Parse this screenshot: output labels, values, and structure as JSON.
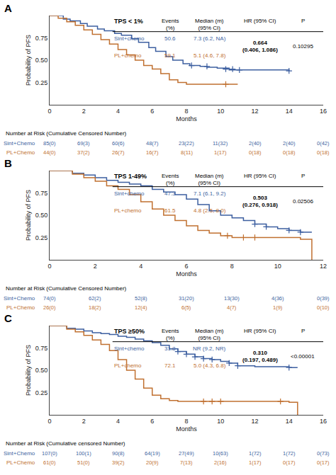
{
  "chart_data": [
    {
      "type": "step",
      "panel": "A",
      "title": "TPS < 1%",
      "x_label": "Months",
      "y_label": "Probability of PFS",
      "xlim": [
        0,
        16
      ],
      "xticks": [
        0,
        2,
        4,
        6,
        8,
        10,
        12,
        14,
        16
      ],
      "ylim": [
        0,
        1.0
      ],
      "yticks": [
        0.25,
        {
          "value": 0.5,
          "label": "0.50"
        },
        0.75
      ],
      "grid": false,
      "series": [
        {
          "color": "#3D5FA0",
          "x": [
            0,
            0.8,
            1.2,
            1.8,
            2.2,
            2.8,
            3.2,
            3.8,
            4.2,
            4.8,
            5.2,
            5.8,
            6.2,
            6.8,
            7.2,
            7.8,
            8.2,
            8.8,
            9.2,
            9.8,
            10.5,
            14.0
          ],
          "values": [
            1.0,
            0.96,
            0.94,
            0.91,
            0.88,
            0.85,
            0.83,
            0.8,
            0.78,
            0.74,
            0.7,
            0.64,
            0.6,
            0.54,
            0.5,
            0.46,
            0.44,
            0.43,
            0.42,
            0.41,
            0.39,
            0.38
          ]
        },
        {
          "color": "#C07030",
          "x": [
            0,
            0.5,
            1.0,
            1.5,
            2.0,
            2.5,
            3.0,
            3.5,
            4.0,
            4.5,
            5.0,
            5.5,
            6.0,
            6.5,
            7.0,
            7.5,
            8.0,
            9.0,
            10.0,
            11.0
          ],
          "values": [
            1.0,
            0.97,
            0.93,
            0.89,
            0.84,
            0.79,
            0.73,
            0.68,
            0.62,
            0.56,
            0.5,
            0.44,
            0.4,
            0.35,
            0.28,
            0.25,
            0.23,
            0.23,
            0.23,
            0.23
          ]
        },
        {
          "type": "scatter",
          "marker": "cross",
          "color": "#3D5FA0",
          "x": [
            8.3,
            9.2,
            10.3,
            10.7,
            11.1,
            14.0
          ],
          "values": [
            0.44,
            0.43,
            0.4,
            0.4,
            0.39,
            0.38
          ]
        },
        {
          "type": "scatter",
          "marker": "cross",
          "color": "#C07030",
          "x": [
            10.3
          ],
          "values": [
            0.23
          ]
        }
      ],
      "table": {
        "columns": [
          "Events\n(%)",
          "Median (m)\n(95% CI)",
          "HR (95% CI)",
          "P"
        ],
        "rows": [
          {
            "label": "Sint+chemo",
            "color": "#3D5FA0",
            "events": "50.6",
            "median": "7.3 (6.2, NA)"
          },
          {
            "label": "PL+chemo",
            "color": "#C07030",
            "events": "59.1",
            "median": "5.1 (4.6, 7.8)"
          }
        ],
        "hr": "0.664\n(0.406, 1.086)",
        "p": "0.10295"
      },
      "at_risk": {
        "title": "Number at Risk (Cumulative Censored Number)",
        "timepoints": [
          0,
          2,
          4,
          6,
          8,
          10,
          12,
          14,
          16
        ],
        "rows": [
          {
            "label": "Sint+Chemo",
            "color": "#3D5FA0",
            "values": [
              "85(0)",
              "69(3)",
              "60(6)",
              "48(7)",
              "23(22)",
              "11(32)",
              "2(40)",
              "2(40)",
              "0(42)"
            ]
          },
          {
            "label": "PL+Chemo",
            "color": "#C07030",
            "values": [
              "44(0)",
              "37(2)",
              "26(7)",
              "16(7)",
              "8(11)",
              "1(17)",
              "0(18)",
              "0(18)",
              "0(18)"
            ]
          }
        ]
      }
    },
    {
      "type": "step",
      "panel": "B",
      "title": "TPS 1-49%",
      "x_label": "Months",
      "y_label": "Probability of PFS",
      "xlim": [
        0,
        12
      ],
      "xticks": [
        0,
        2,
        4,
        6,
        8,
        10,
        12
      ],
      "ylim": [
        0,
        1.0
      ],
      "yticks": [
        0.25,
        {
          "value": 0.5,
          "label": "0.50"
        },
        0.75
      ],
      "grid": false,
      "series": [
        {
          "color": "#3D5FA0",
          "x": [
            0,
            1.0,
            1.5,
            2.0,
            2.5,
            3.0,
            3.5,
            4.0,
            4.5,
            5.0,
            5.5,
            6.0,
            6.5,
            7.0,
            7.5,
            8.0,
            8.5,
            9.0,
            9.5,
            10.0,
            10.5,
            11.0,
            11.5
          ],
          "values": [
            1.0,
            0.97,
            0.95,
            0.92,
            0.89,
            0.87,
            0.85,
            0.83,
            0.79,
            0.76,
            0.73,
            0.68,
            0.62,
            0.55,
            0.5,
            0.47,
            0.44,
            0.4,
            0.37,
            0.35,
            0.33,
            0.31,
            0.31
          ]
        },
        {
          "color": "#C07030",
          "x": [
            0,
            1.0,
            1.5,
            2.0,
            2.5,
            3.0,
            3.5,
            4.0,
            4.5,
            5.0,
            5.5,
            6.0,
            6.5,
            7.0,
            7.5,
            8.0,
            8.5,
            9.0,
            9.5,
            10.0,
            11.0,
            11.5
          ],
          "values": [
            1.0,
            0.96,
            0.92,
            0.88,
            0.83,
            0.79,
            0.73,
            0.65,
            0.57,
            0.5,
            0.44,
            0.38,
            0.33,
            0.3,
            0.27,
            0.25,
            0.25,
            0.25,
            0.25,
            0.25,
            0.23,
            0.0
          ]
        },
        {
          "type": "scatter",
          "marker": "cross",
          "color": "#3D5FA0",
          "x": [
            9.0,
            9.5,
            10.5,
            11.0
          ],
          "values": [
            0.4,
            0.37,
            0.33,
            0.31
          ]
        },
        {
          "type": "scatter",
          "marker": "cross",
          "color": "#C07030",
          "x": [
            7.8,
            8.5,
            9.0
          ],
          "values": [
            0.27,
            0.25,
            0.25
          ]
        }
      ],
      "table": {
        "columns": [
          "Events\n(%)",
          "Median (m)\n(95% CI)",
          "HR (95% CI)",
          "P"
        ],
        "rows": [
          {
            "label": "Sint+chemo",
            "color": "#3D5FA0",
            "events": "47.3",
            "median": "7.1 (6.1, 9.2)"
          },
          {
            "label": "PL+chemo",
            "color": "#C07030",
            "events": "61.5",
            "median": "4.8 (2.5, 8.0)"
          }
        ],
        "hr": "0.503\n(0.276, 0.918)",
        "p": "0.02506"
      },
      "at_risk": {
        "title": "Number at Risk (Cumulative Censored Number)",
        "timepoints": [
          0,
          2,
          4,
          6,
          8,
          10,
          12
        ],
        "rows": [
          {
            "label": "Sint+Chemo",
            "color": "#3D5FA0",
            "values": [
              "74(0)",
              "62(2)",
              "52(8)",
              "31(20)",
              "13(30)",
              "4(36)",
              "0(39)"
            ]
          },
          {
            "label": "PL+Chemo",
            "color": "#C07030",
            "values": [
              "26(0)",
              "18(2)",
              "12(4)",
              "6(5)",
              "4(7)",
              "1(9)",
              "0(10)"
            ]
          }
        ]
      }
    },
    {
      "type": "step",
      "panel": "C",
      "title": "TPS ≥50%",
      "x_label": "Months",
      "y_label": "Probability of PFS",
      "xlim": [
        0,
        16
      ],
      "xticks": [
        0,
        2,
        4,
        6,
        8,
        10,
        12,
        14,
        16
      ],
      "ylim": [
        0,
        1.0
      ],
      "yticks": [
        0.25,
        {
          "value": 0.5,
          "label": "0.50"
        },
        0.75
      ],
      "grid": false,
      "series": [
        {
          "color": "#3D5FA0",
          "x": [
            0,
            1.0,
            1.5,
            2.0,
            2.5,
            3.0,
            3.5,
            4.0,
            4.5,
            5.0,
            5.5,
            6.0,
            6.5,
            7.0,
            7.5,
            8.0,
            8.5,
            9.0,
            9.5,
            10.0,
            10.5,
            11.0,
            12.0,
            13.0,
            14.0,
            14.5
          ],
          "values": [
            1.0,
            0.97,
            0.96,
            0.94,
            0.92,
            0.91,
            0.9,
            0.88,
            0.87,
            0.85,
            0.83,
            0.81,
            0.78,
            0.74,
            0.71,
            0.68,
            0.65,
            0.63,
            0.62,
            0.6,
            0.58,
            0.55,
            0.54,
            0.54,
            0.53,
            0.53
          ]
        },
        {
          "color": "#C07030",
          "x": [
            0,
            1.0,
            1.5,
            2.0,
            2.5,
            3.0,
            3.5,
            4.0,
            4.5,
            5.0,
            5.5,
            6.0,
            6.5,
            7.0,
            7.5,
            8.0,
            8.5,
            9.0,
            9.5,
            10.0,
            13.0,
            14.0,
            14.5
          ],
          "values": [
            1.0,
            0.96,
            0.93,
            0.89,
            0.84,
            0.79,
            0.72,
            0.62,
            0.5,
            0.4,
            0.3,
            0.22,
            0.18,
            0.16,
            0.15,
            0.15,
            0.15,
            0.15,
            0.15,
            0.15,
            0.15,
            0.14,
            0.0
          ]
        },
        {
          "type": "scatter",
          "marker": "cross",
          "color": "#3D5FA0",
          "x": [
            7.5,
            8.0,
            8.5,
            9.0,
            9.5,
            10.5,
            11.0,
            14.0
          ],
          "values": [
            0.71,
            0.68,
            0.65,
            0.63,
            0.62,
            0.58,
            0.55,
            0.53
          ]
        },
        {
          "type": "scatter",
          "marker": "cross",
          "color": "#C07030",
          "x": [
            9.0,
            9.5,
            10.0,
            13.5
          ],
          "values": [
            0.15,
            0.15,
            0.15,
            0.15
          ]
        }
      ],
      "table": {
        "columns": [
          "Events\n(%)",
          "Median (m)\n(95% CI)",
          "HR (95% CI)",
          "P"
        ],
        "rows": [
          {
            "label": "Sint+chemo",
            "color": "#3D5FA0",
            "events": "31.8",
            "median": "NR (9.2, NR)"
          },
          {
            "label": "PL+chemo",
            "color": "#C07030",
            "events": "72.1",
            "median": "5.0 (4.3, 6.8)"
          }
        ],
        "hr": "0.310\n(0.197, 0.489)",
        "p": "<0.00001"
      },
      "at_risk": {
        "title": "Number at Risk (Cumulative censored Number)",
        "timepoints": [
          0,
          2,
          4,
          6,
          8,
          10,
          12,
          14,
          16
        ],
        "rows": [
          {
            "label": "Sint+Chemo",
            "color": "#3D5FA0",
            "values": [
              "107(0)",
              "100(1)",
              "90(8)",
              "64(19)",
              "27(49)",
              "10(63)",
              "1(72)",
              "1(72)",
              "0(73)"
            ]
          },
          {
            "label": "PL+Chemo",
            "color": "#C07030",
            "values": [
              "61(0)",
              "51(0)",
              "39(2)",
              "20(9)",
              "7(13)",
              "2(16)",
              "1(17)",
              "0(17)",
              "0(17)"
            ]
          }
        ]
      }
    }
  ]
}
